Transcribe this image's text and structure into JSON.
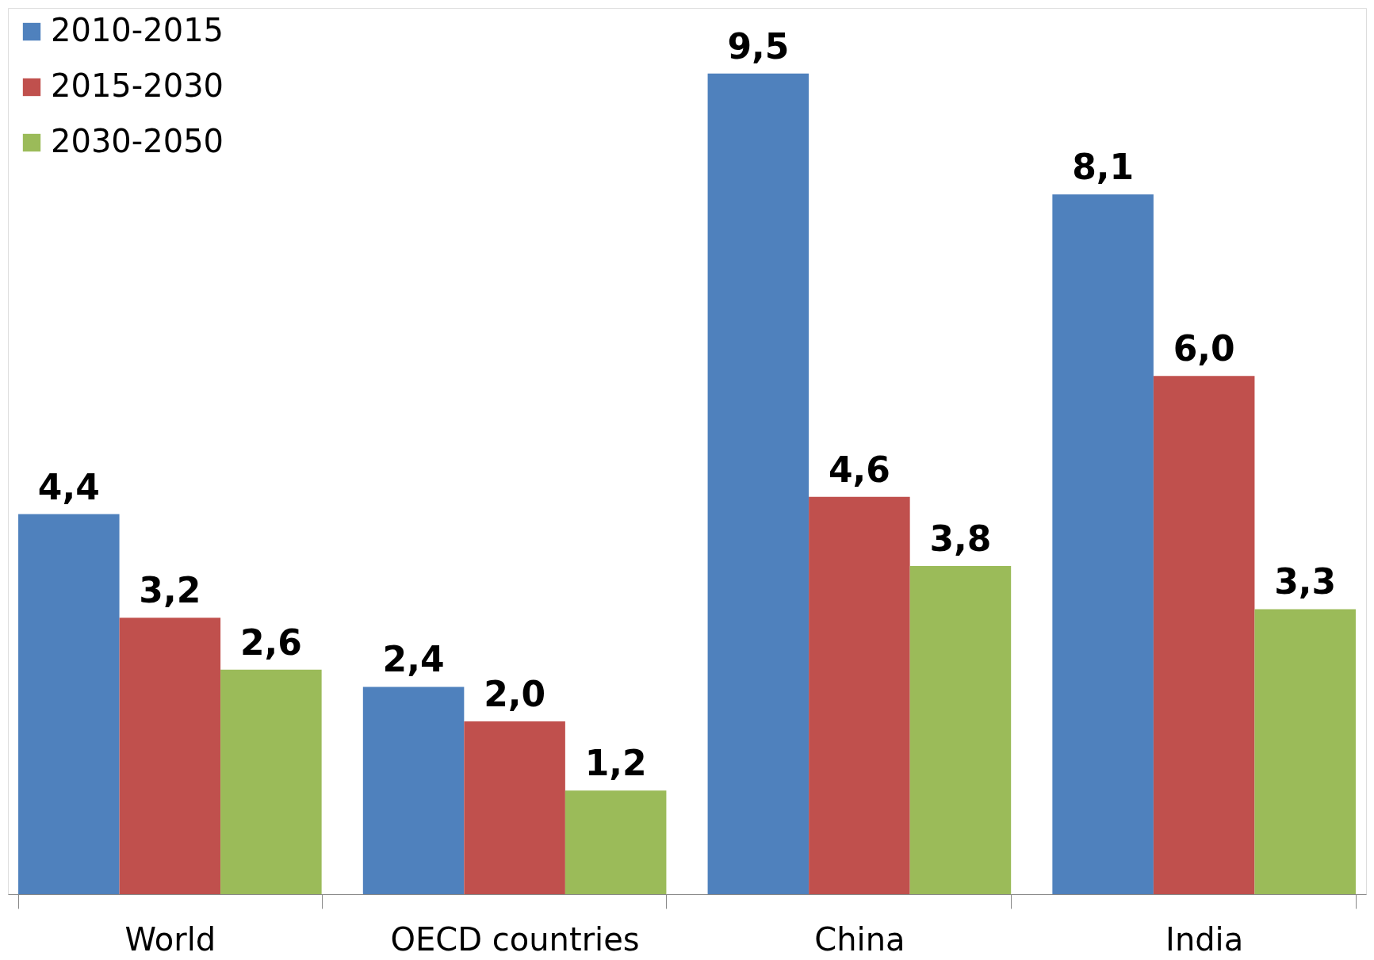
{
  "chart_data": {
    "type": "bar",
    "categories": [
      "World",
      "OECD countries",
      "China",
      "India"
    ],
    "series": [
      {
        "name": "2010-2015",
        "color": "#4f81bd",
        "values": [
          4.4,
          2.4,
          9.5,
          8.1
        ],
        "value_labels": [
          "4,4",
          "2,4",
          "9,5",
          "8,1"
        ]
      },
      {
        "name": "2015-2030",
        "color": "#c0504d",
        "values": [
          3.2,
          2.0,
          4.6,
          6.0
        ],
        "value_labels": [
          "3,2",
          "2,0",
          "4,6",
          "6,0"
        ]
      },
      {
        "name": "2030-2050",
        "color": "#9bbb59",
        "values": [
          2.6,
          1.2,
          3.8,
          3.3
        ],
        "value_labels": [
          "2,6",
          "1,2",
          "3,8",
          "3,3"
        ]
      }
    ],
    "legend": "top left",
    "grid": false
  }
}
